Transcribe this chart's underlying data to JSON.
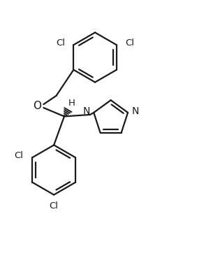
{
  "bg_color": "#ffffff",
  "bond_color": "#1a1a1a",
  "text_color": "#1a1a1a",
  "line_width": 1.6,
  "font_size": 9.5,
  "fig_width": 2.82,
  "fig_height": 3.96,
  "dpi": 100,
  "xlim": [
    -2.8,
    2.8
  ],
  "ylim": [
    -3.9,
    2.9
  ]
}
